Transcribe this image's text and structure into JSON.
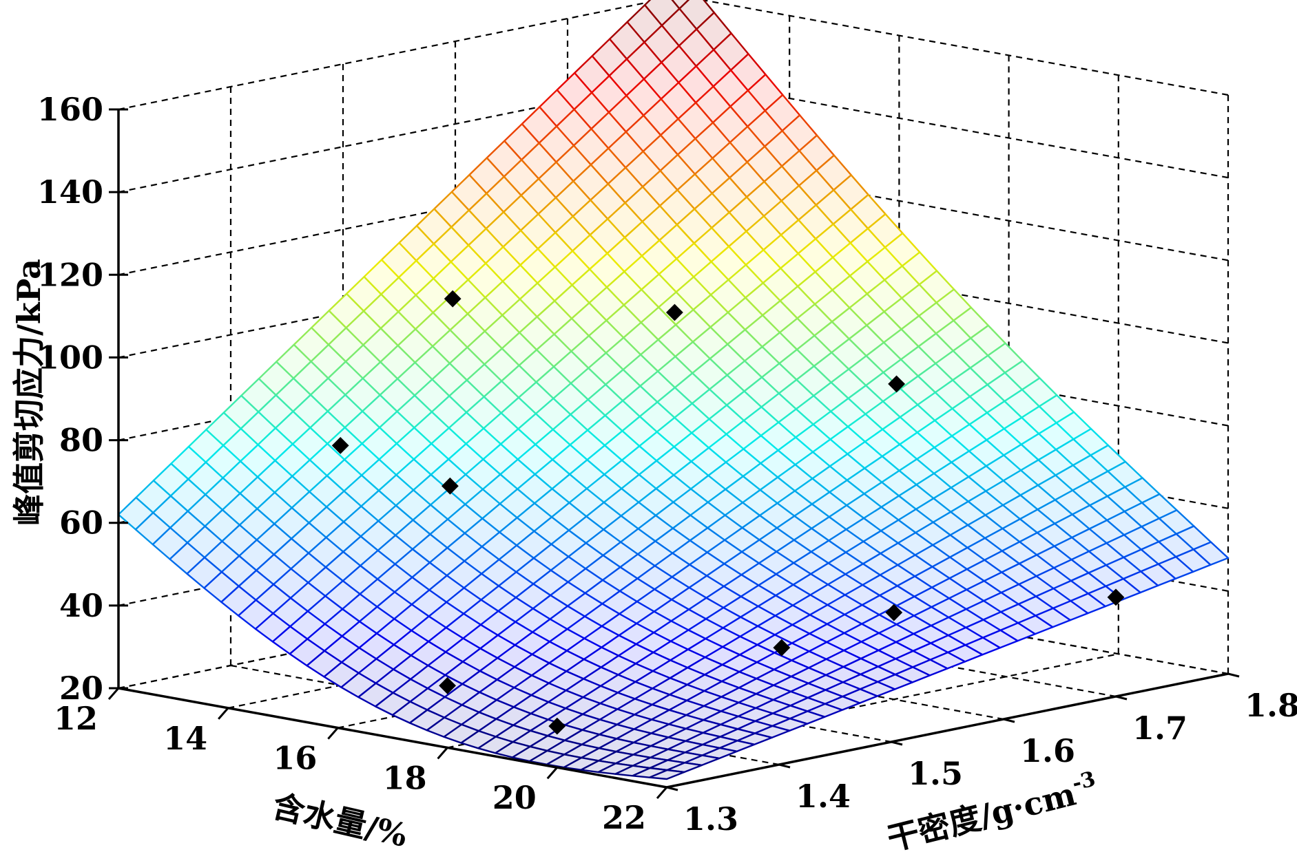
{
  "chart_data": {
    "type": "surface",
    "xlabel": "含水量/%",
    "ylabel_prefix": "干密度/g·cm",
    "ylabel_sup": "-3",
    "zlabel": "峰值剪切应力/kPa",
    "x_ticks": [
      "12",
      "14",
      "16",
      "18",
      "20",
      "22"
    ],
    "y_ticks": [
      "1.3",
      "1.4",
      "1.5",
      "1.6",
      "1.7",
      "1.8"
    ],
    "z_ticks": [
      "20",
      "40",
      "60",
      "80",
      "100",
      "120",
      "140",
      "160"
    ],
    "xlim": [
      12,
      22
    ],
    "ylim": [
      1.3,
      1.8
    ],
    "zlim": [
      20,
      160
    ],
    "colormap": "jet",
    "surface_corners": {
      "w12_d1.3": 62,
      "w22_d1.3": 22,
      "w12_d1.8": 166,
      "w22_d1.8": 48
    },
    "points": [
      {
        "w": 14,
        "d": 1.4,
        "z": 78
      },
      {
        "w": 16,
        "d": 1.4,
        "z": 73
      },
      {
        "w": 14,
        "d": 1.5,
        "z": 108
      },
      {
        "w": 16,
        "d": 1.6,
        "z": 104
      },
      {
        "w": 18,
        "d": 1.7,
        "z": 86
      },
      {
        "w": 18,
        "d": 1.3,
        "z": 35
      },
      {
        "w": 20,
        "d": 1.3,
        "z": 30
      },
      {
        "w": 20,
        "d": 1.5,
        "z": 38
      },
      {
        "w": 20,
        "d": 1.6,
        "z": 41
      },
      {
        "w": 22,
        "d": 1.7,
        "z": 44
      }
    ]
  }
}
